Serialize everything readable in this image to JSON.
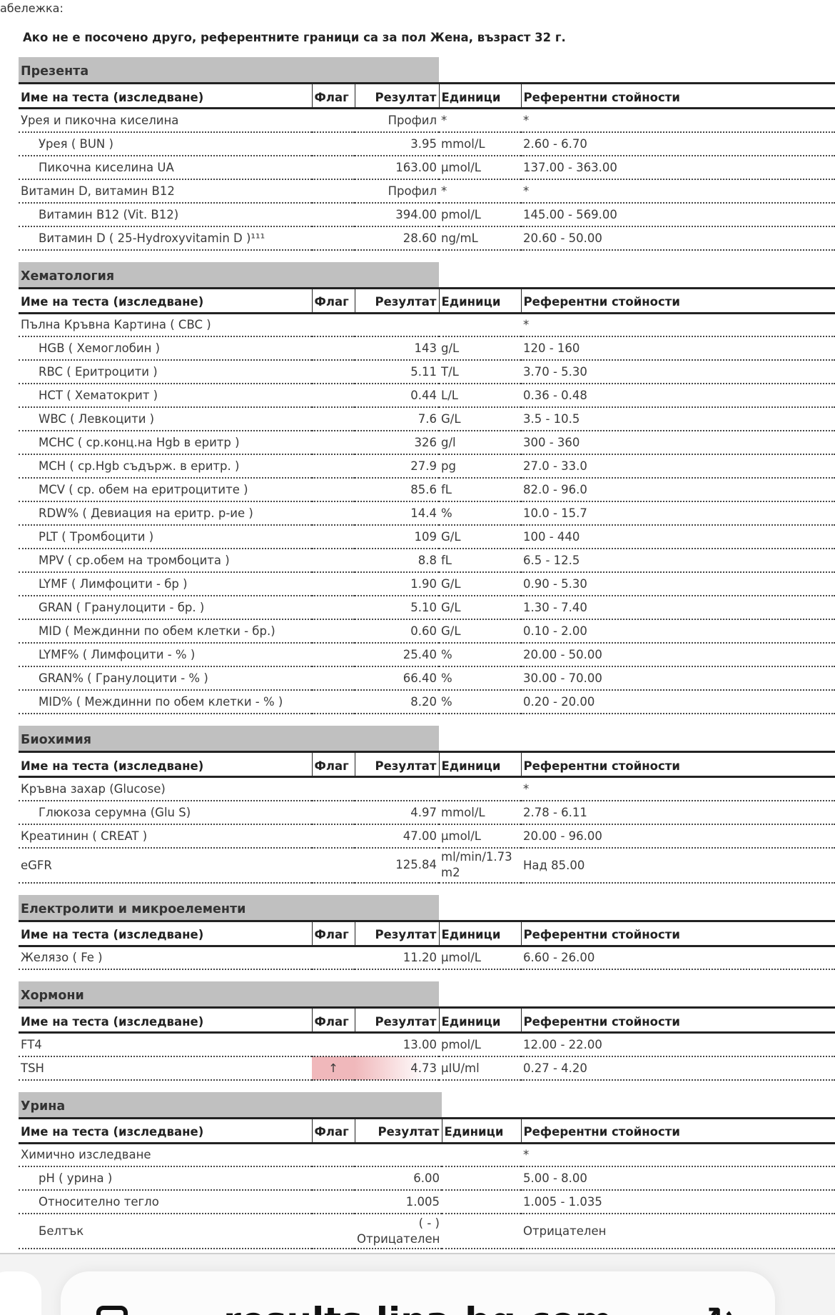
{
  "note_label": "абележка:",
  "reference_note": "Ако не е посочено друго, референтните граници са за пол Жена, възраст 32 г.",
  "columns": {
    "name": "Име на теста (изследване)",
    "flag": "Флаг",
    "result": "Резултат",
    "units": "Единици",
    "ref": "Референтни стойности"
  },
  "flag_color": "#f0b8bb",
  "sections": [
    {
      "title": "Презента",
      "rows": [
        {
          "name": "Урея и пикочна киселина",
          "result": "Профил",
          "units": "*",
          "ref": "*"
        },
        {
          "name": "Урея ( BUN )",
          "sub": true,
          "result": "3.95",
          "units": "mmol/L",
          "ref": "2.60 - 6.70"
        },
        {
          "name": "Пикочна киселина UA",
          "sub": true,
          "result": "163.00",
          "units": "µmol/L",
          "ref": "137.00 - 363.00"
        },
        {
          "name": "Витамин D, витамин B12",
          "result": "Профил",
          "units": "*",
          "ref": "*"
        },
        {
          "name": "Витамин B12 (Vit. B12)",
          "sub": true,
          "result": "394.00",
          "units": "pmol/L",
          "ref": "145.00 - 569.00"
        },
        {
          "name": "Витамин D ( 25-Hydroxyvitamin D )¹¹¹",
          "sub": true,
          "result": "28.60",
          "units": "ng/mL",
          "ref": "20.60 - 50.00"
        }
      ]
    },
    {
      "title": "Хематология",
      "rows": [
        {
          "name": "Пълна Кръвна Картина ( CBC )",
          "result": "",
          "units": "",
          "ref": "*"
        },
        {
          "name": "HGB ( Хемоглобин )",
          "sub": true,
          "result": "143",
          "units": "g/L",
          "ref": "120 - 160"
        },
        {
          "name": "RBC ( Еритроцити )",
          "sub": true,
          "result": "5.11",
          "units": "T/L",
          "ref": "3.70 - 5.30"
        },
        {
          "name": "HCT ( Хематокрит )",
          "sub": true,
          "result": "0.44",
          "units": "L/L",
          "ref": "0.36 - 0.48"
        },
        {
          "name": "WBC ( Левкоцити )",
          "sub": true,
          "result": "7.6",
          "units": "G/L",
          "ref": "3.5 - 10.5"
        },
        {
          "name": "MCHC ( ср.конц.на Hgb в еритр )",
          "sub": true,
          "result": "326",
          "units": "g/l",
          "ref": "300 - 360"
        },
        {
          "name": "MCH ( ср.Hgb съдърж. в еритр. )",
          "sub": true,
          "result": "27.9",
          "units": "pg",
          "ref": "27.0 - 33.0"
        },
        {
          "name": "MCV ( ср. обем на еритроцитите )",
          "sub": true,
          "result": "85.6",
          "units": "fL",
          "ref": "82.0 - 96.0"
        },
        {
          "name": "RDW% ( Девиация на еритр. р-ие )",
          "sub": true,
          "result": "14.4",
          "units": "%",
          "ref": "10.0 - 15.7"
        },
        {
          "name": "PLT ( Тромбоцити )",
          "sub": true,
          "result": "109",
          "units": "G/L",
          "ref": "100 - 440"
        },
        {
          "name": "MPV ( ср.обем на тромбоцита )",
          "sub": true,
          "result": "8.8",
          "units": "fL",
          "ref": "6.5 - 12.5"
        },
        {
          "name": "LYMF ( Лимфоцити - бр )",
          "sub": true,
          "result": "1.90",
          "units": "G/L",
          "ref": "0.90 - 5.30"
        },
        {
          "name": "GRAN ( Гранулоцити - бр. )",
          "sub": true,
          "result": "5.10",
          "units": "G/L",
          "ref": "1.30 - 7.40"
        },
        {
          "name": "MID ( Междинни по обем клетки - бр.)",
          "sub": true,
          "result": "0.60",
          "units": "G/L",
          "ref": "0.10 - 2.00"
        },
        {
          "name": "LYMF% ( Лимфоцити - % )",
          "sub": true,
          "result": "25.40",
          "units": "%",
          "ref": "20.00 - 50.00"
        },
        {
          "name": "GRAN% ( Гранулоцити - % )",
          "sub": true,
          "result": "66.40",
          "units": "%",
          "ref": "30.00 - 70.00"
        },
        {
          "name": "MID% ( Междинни по обем клетки - % )",
          "sub": true,
          "result": "8.20",
          "units": "%",
          "ref": "0.20 - 20.00"
        }
      ]
    },
    {
      "title": "Биохимия",
      "rows": [
        {
          "name": "Кръвна захар (Glucose)",
          "result": "",
          "units": "",
          "ref": "*"
        },
        {
          "name": "Глюкоза серумна (Glu S)",
          "sub": true,
          "result": "4.97",
          "units": "mmol/L",
          "ref": "2.78 - 6.11"
        },
        {
          "name": "Креатинин ( CREAT )",
          "result": "47.00",
          "units": "µmol/L",
          "ref": "20.00 - 96.00"
        },
        {
          "name": "eGFR",
          "result": "125.84",
          "units": "ml/min/1.73 m2",
          "ref": "Над 85.00",
          "tall": true
        }
      ]
    },
    {
      "title": "Електролити и микроелементи",
      "rows": [
        {
          "name": "Желязо ( Fe )",
          "result": "11.20",
          "units": "µmol/L",
          "ref": "6.60 - 26.00"
        }
      ]
    },
    {
      "title": "Хормони",
      "rows": [
        {
          "name": "FT4",
          "result": "13.00",
          "units": "pmol/L",
          "ref": "12.00 - 22.00"
        },
        {
          "name": "TSH",
          "flag": "↑",
          "result": "4.73",
          "units": "µIU/ml",
          "ref": "0.27 - 4.20"
        }
      ]
    },
    {
      "title": "Урина",
      "wide": true,
      "rows": [
        {
          "name": "Химично изследване",
          "result": "",
          "units": "",
          "ref": "*"
        },
        {
          "name": "pH ( урина )",
          "sub": true,
          "result": "6.00",
          "units": "",
          "ref": "5.00 - 8.00"
        },
        {
          "name": "Относително тегло",
          "sub": true,
          "result": "1.005",
          "units": "",
          "ref": "1.005 - 1.035"
        },
        {
          "name": "Белтък",
          "sub": true,
          "result": "( - ) Отрицателен",
          "units": "",
          "ref": "Отрицателен",
          "tall": true
        }
      ]
    }
  ],
  "browser": {
    "url": "results.lina-bg.com",
    "tabs_icon": "tabs-icon",
    "share_icon": "share-icon"
  }
}
